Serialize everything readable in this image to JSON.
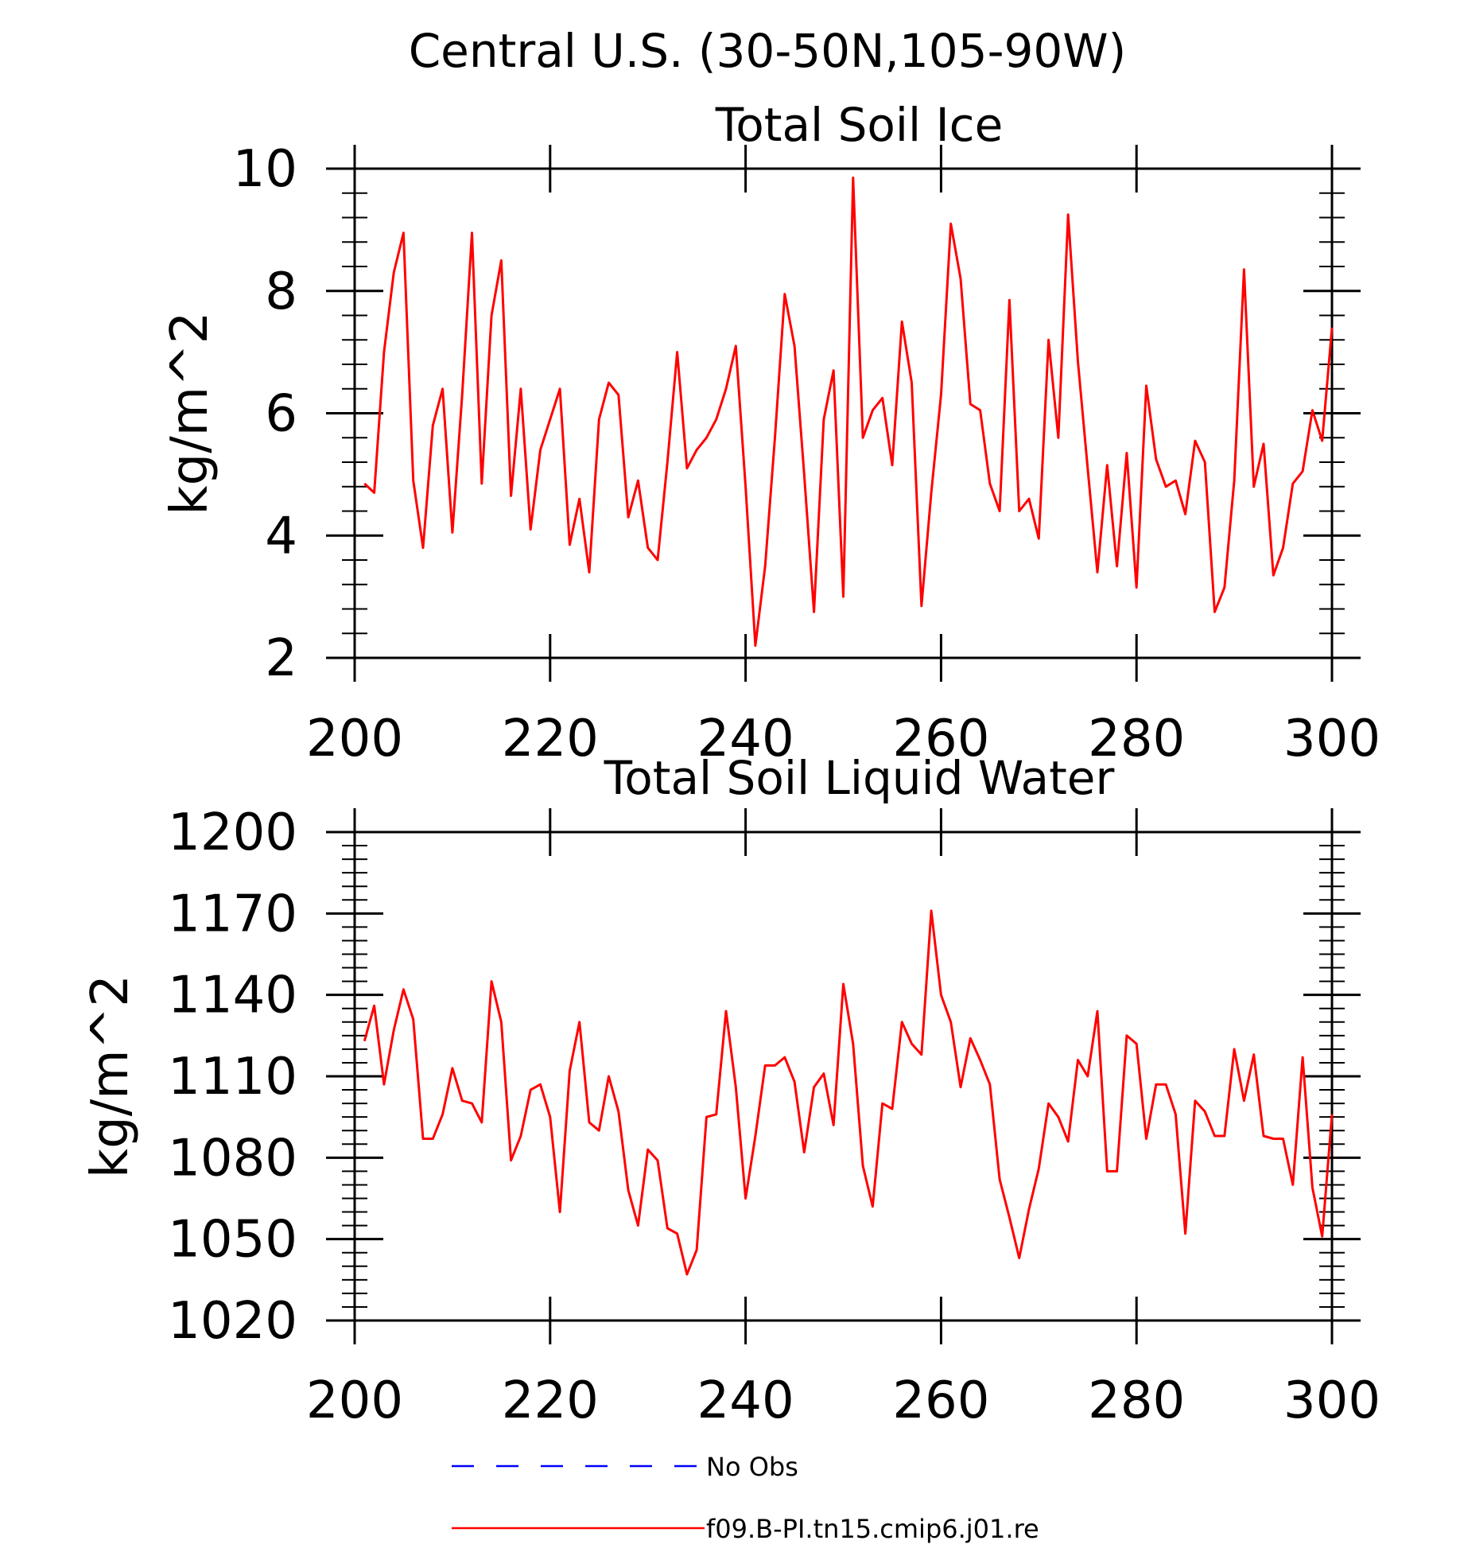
{
  "figure": {
    "title": "Central U.S. (30-50N,105-90W)"
  },
  "chart_data": [
    {
      "type": "line",
      "title": "Total Soil Ice",
      "ylabel": "kg/m^2",
      "xlabel": "",
      "xlim": [
        200,
        300
      ],
      "ylim": [
        2,
        10
      ],
      "x_ticks": [
        200,
        220,
        240,
        260,
        280,
        300
      ],
      "y_ticks": [
        2,
        4,
        6,
        8,
        10
      ],
      "grid": false,
      "series": [
        {
          "name": "f09.B-PI.tn15.cmip6.j01.re",
          "color": "#ff0000",
          "x": [
            201,
            202,
            203,
            204,
            205,
            206,
            207,
            208,
            209,
            210,
            211,
            212,
            213,
            214,
            215,
            216,
            217,
            218,
            219,
            220,
            221,
            222,
            223,
            224,
            225,
            226,
            227,
            228,
            229,
            230,
            231,
            232,
            233,
            234,
            235,
            236,
            237,
            238,
            239,
            240,
            241,
            242,
            243,
            244,
            245,
            246,
            247,
            248,
            249,
            250,
            251,
            252,
            253,
            254,
            255,
            256,
            257,
            258,
            259,
            260,
            261,
            262,
            263,
            264,
            265,
            266,
            267,
            268,
            269,
            270,
            271,
            272,
            273,
            274,
            275,
            276,
            277,
            278,
            279,
            280,
            281,
            282,
            283,
            284,
            285,
            286,
            287,
            288,
            289,
            290,
            291,
            292,
            293,
            294,
            295,
            296,
            297,
            298,
            299,
            300
          ],
          "values": [
            4.85,
            4.7,
            7.0,
            8.3,
            8.95,
            4.9,
            3.8,
            5.8,
            6.4,
            4.05,
            6.3,
            8.95,
            4.85,
            7.6,
            8.5,
            4.65,
            6.4,
            4.1,
            5.4,
            5.9,
            6.4,
            3.85,
            4.6,
            3.4,
            5.9,
            6.5,
            6.3,
            4.3,
            4.9,
            3.8,
            3.6,
            5.2,
            7.0,
            5.1,
            5.4,
            5.6,
            5.9,
            6.4,
            7.1,
            4.8,
            2.2,
            3.5,
            5.6,
            7.95,
            7.1,
            5.0,
            2.75,
            5.9,
            6.7,
            3.0,
            9.85,
            5.6,
            6.05,
            6.25,
            5.15,
            7.5,
            6.5,
            2.85,
            4.7,
            6.3,
            9.1,
            8.2,
            6.15,
            6.05,
            4.85,
            4.4,
            7.85,
            4.4,
            4.6,
            3.95,
            7.2,
            5.6,
            9.25,
            6.85,
            5.1,
            3.4,
            5.15,
            3.5,
            5.35,
            3.15,
            6.45,
            5.25,
            4.8,
            4.9,
            4.35,
            5.55,
            5.2,
            2.75,
            3.15,
            4.9,
            8.35,
            4.8,
            5.5,
            3.35,
            3.8,
            4.85,
            5.05,
            6.05,
            5.55,
            7.4
          ]
        }
      ]
    },
    {
      "type": "line",
      "title": "Total Soil Liquid Water",
      "ylabel": "kg/m^2",
      "xlabel": "",
      "xlim": [
        200,
        300
      ],
      "ylim": [
        1020,
        1200
      ],
      "x_ticks": [
        200,
        220,
        240,
        260,
        280,
        300
      ],
      "y_ticks": [
        1020,
        1050,
        1080,
        1110,
        1140,
        1170,
        1200
      ],
      "grid": false,
      "series": [
        {
          "name": "f09.B-PI.tn15.cmip6.j01.re",
          "color": "#ff0000",
          "x": [
            201,
            202,
            203,
            204,
            205,
            206,
            207,
            208,
            209,
            210,
            211,
            212,
            213,
            214,
            215,
            216,
            217,
            218,
            219,
            220,
            221,
            222,
            223,
            224,
            225,
            226,
            227,
            228,
            229,
            230,
            231,
            232,
            233,
            234,
            235,
            236,
            237,
            238,
            239,
            240,
            241,
            242,
            243,
            244,
            245,
            246,
            247,
            248,
            249,
            250,
            251,
            252,
            253,
            254,
            255,
            256,
            257,
            258,
            259,
            260,
            261,
            262,
            263,
            264,
            265,
            266,
            267,
            268,
            269,
            270,
            271,
            272,
            273,
            274,
            275,
            276,
            277,
            278,
            279,
            280,
            281,
            282,
            283,
            284,
            285,
            286,
            287,
            288,
            289,
            290,
            291,
            292,
            293,
            294,
            295,
            296,
            297,
            298,
            299,
            300
          ],
          "values": [
            1123,
            1136,
            1107,
            1127,
            1142,
            1131,
            1087,
            1087,
            1096,
            1113,
            1101,
            1100,
            1093,
            1145,
            1130,
            1079,
            1088,
            1105,
            1107,
            1095,
            1060,
            1112,
            1130,
            1093,
            1090,
            1110,
            1097,
            1068,
            1055,
            1083,
            1079,
            1054,
            1052,
            1037,
            1046,
            1095,
            1096,
            1134,
            1106,
            1065,
            1088,
            1114,
            1114,
            1117,
            1108,
            1082,
            1106,
            1111,
            1092,
            1144,
            1122,
            1077,
            1062,
            1100,
            1098,
            1130,
            1122,
            1118,
            1171,
            1140,
            1130,
            1106,
            1124,
            1116,
            1107,
            1072,
            1058,
            1043,
            1061,
            1076,
            1100,
            1095,
            1086,
            1116,
            1110,
            1134,
            1075,
            1075,
            1125,
            1122,
            1087,
            1107,
            1107,
            1096,
            1052,
            1101,
            1097,
            1088,
            1088,
            1120,
            1101,
            1118,
            1088,
            1087,
            1087,
            1070,
            1117,
            1069,
            1051,
            1096
          ]
        }
      ]
    }
  ],
  "legend": {
    "placement": "bottom-center",
    "entries": [
      {
        "label": "No Obs",
        "color": "#0000ff",
        "style": "dashed"
      },
      {
        "label": "f09.B-PI.tn15.cmip6.j01.re",
        "color": "#ff0000",
        "style": "solid"
      }
    ]
  }
}
